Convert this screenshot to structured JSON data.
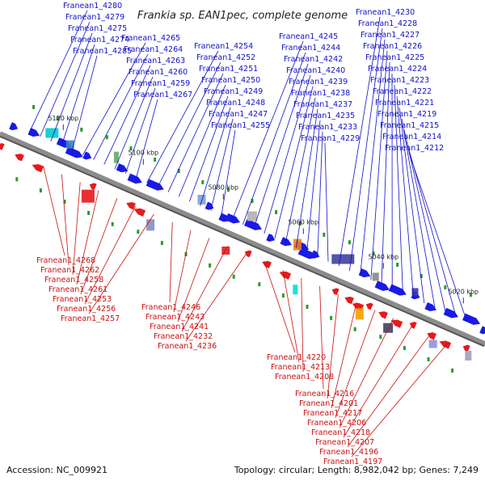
{
  "title": "Frankia sp. EAN1pec, complete genome",
  "footer": {
    "accession": "Accession: NC_009921",
    "topology": "Topology: circular; Length: 8,982,042 bp; Genes: 7,249"
  },
  "colors": {
    "forward": "#1a1ae6",
    "reverse": "#e61a1a",
    "backbone": "#8c8c8c",
    "marker": "#2a9a2a",
    "label_blue": "#1010c8",
    "label_red": "#c81010"
  },
  "scale_labels": [
    "5120 kbp",
    "5100 kbp",
    "5080 kbp",
    "5060 kbp",
    "5040 kbp",
    "5020 kbp"
  ],
  "forward_labels": [
    "Franean1_4280",
    "Franean1_4279",
    "Franean1_4275",
    "Franean1_4274",
    "Franean1_4285",
    "Franean1_4265",
    "Franean1_4264",
    "Franean1_4263",
    "Franean1_4260",
    "Franean1_4259",
    "Franean1_4267",
    "Franean1_4254",
    "Franean1_4252",
    "Franean1_4251",
    "Franean1_4250",
    "Franean1_4249",
    "Franean1_4248",
    "Franean1_4247",
    "Franean1_4255",
    "Franean1_4245",
    "Franean1_4244",
    "Franean1_4242",
    "Franean1_4240",
    "Franean1_4239",
    "Franean1_4238",
    "Franean1_4237",
    "Franean1_4235",
    "Franean1_4233",
    "Franean1_4229",
    "Franean1_4230",
    "Franean1_4228",
    "Franean1_4227",
    "Franean1_4226",
    "Franean1_4225",
    "Franean1_4224",
    "Franean1_4223",
    "Franean1_4222",
    "Franean1_4221",
    "Franean1_4219",
    "Franean1_4215",
    "Franean1_4214",
    "Franean1_4212"
  ],
  "reverse_labels": [
    "Franean1_4268",
    "Franean1_4262",
    "Franean1_4258",
    "Franean1_4261",
    "Franean1_4253",
    "Franean1_4256",
    "Franean1_4257",
    "Franean1_4246",
    "Franean1_4243",
    "Franean1_4241",
    "Franean1_4232",
    "Franean1_4236",
    "Franean1_4220",
    "Franean1_4213",
    "Franean1_4208",
    "Franean1_4216",
    "Franean1_4201",
    "Franean1_4217",
    "Franean1_4206",
    "Franean1_4218",
    "Franean1_4207",
    "Franean1_4196",
    "Franean1_4197"
  ]
}
